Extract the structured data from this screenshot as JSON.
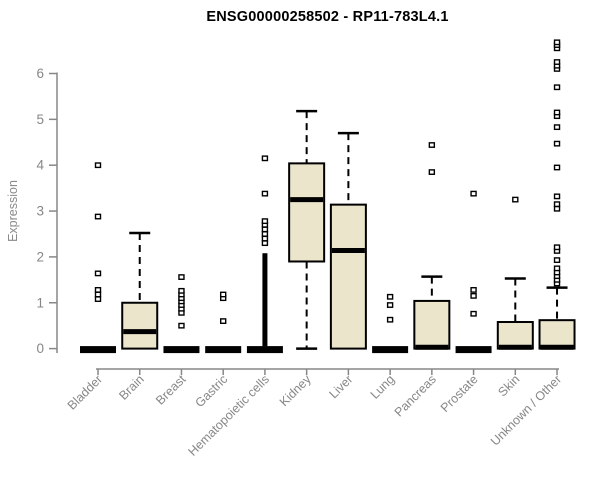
{
  "chart_data": {
    "type": "boxplot",
    "title": "ENSG00000258502 - RP11-783L4.1",
    "ylabel": "Expression",
    "ylim": [
      0,
      6.8
    ],
    "yticks": [
      0,
      1,
      2,
      3,
      4,
      5,
      6
    ],
    "grid": false,
    "legend": "none",
    "categories": [
      "Bladder",
      "Brain",
      "Breast",
      "Gastric",
      "Hematopoietic cells",
      "Kidney",
      "Liver",
      "Lung",
      "Pancreas",
      "Prostate",
      "Skin",
      "Unknown / Other"
    ],
    "series": [
      {
        "name": "Bladder",
        "q1": 0,
        "median": 0,
        "q3": 0,
        "whisker_low": 0,
        "whisker_high": 0,
        "outliers": [
          1.08,
          1.18,
          1.28,
          1.64,
          2.88,
          4.0
        ]
      },
      {
        "name": "Brain",
        "q1": 0,
        "median": 0.37,
        "q3": 1.0,
        "whisker_low": 0,
        "whisker_high": 2.52,
        "outliers": []
      },
      {
        "name": "Breast",
        "q1": 0,
        "median": 0,
        "q3": 0,
        "whisker_low": 0,
        "whisker_high": 0,
        "outliers": [
          0.5,
          0.78,
          0.87,
          0.95,
          1.03,
          1.1,
          1.18,
          1.26,
          1.56
        ]
      },
      {
        "name": "Gastric",
        "q1": 0,
        "median": 0,
        "q3": 0,
        "whisker_low": 0,
        "whisker_high": 0,
        "outliers": [
          0.6,
          1.1,
          1.18
        ]
      },
      {
        "name": "Hematopoietic cells",
        "q1": 0,
        "median": 0,
        "q3": 0,
        "whisker_low": 0,
        "whisker_high": 0,
        "dense_stack": [
          0.05,
          2.08
        ],
        "outliers": [
          2.3,
          2.4,
          2.5,
          2.6,
          2.7,
          2.78,
          3.38,
          4.15
        ]
      },
      {
        "name": "Kidney",
        "q1": 1.9,
        "median": 3.25,
        "q3": 4.04,
        "whisker_low": 0,
        "whisker_high": 5.18,
        "outliers": []
      },
      {
        "name": "Liver",
        "q1": 0,
        "median": 2.14,
        "q3": 3.14,
        "whisker_low": 0,
        "whisker_high": 4.7,
        "outliers": []
      },
      {
        "name": "Lung",
        "q1": 0,
        "median": 0,
        "q3": 0,
        "whisker_low": 0,
        "whisker_high": 0,
        "outliers": [
          0.63,
          0.95,
          1.13
        ]
      },
      {
        "name": "Pancreas",
        "q1": 0,
        "median": 0.03,
        "q3": 1.04,
        "whisker_low": 0,
        "whisker_high": 1.57,
        "outliers": [
          3.85,
          4.44
        ]
      },
      {
        "name": "Prostate",
        "q1": 0,
        "median": 0,
        "q3": 0,
        "whisker_low": 0,
        "whisker_high": 0,
        "outliers": [
          0.76,
          1.15,
          1.28,
          3.38
        ]
      },
      {
        "name": "Skin",
        "q1": 0,
        "median": 0.03,
        "q3": 0.58,
        "whisker_low": 0,
        "whisker_high": 1.53,
        "outliers": [
          3.25
        ]
      },
      {
        "name": "Unknown / Other",
        "q1": 0,
        "median": 0.03,
        "q3": 0.62,
        "whisker_low": 0,
        "whisker_high": 1.33,
        "outliers": [
          1.42,
          1.5,
          1.58,
          1.66,
          1.75,
          1.93,
          2.13,
          2.21,
          3.05,
          3.15,
          3.32,
          3.95,
          4.47,
          4.83,
          5.07,
          5.15,
          5.7,
          6.1,
          6.17,
          6.25,
          6.55,
          6.62,
          6.68
        ]
      }
    ],
    "colors": {
      "box_fill": "#ebe5cb",
      "box_border": "#000000",
      "axis": "#878787",
      "title_color": "#000000"
    }
  }
}
